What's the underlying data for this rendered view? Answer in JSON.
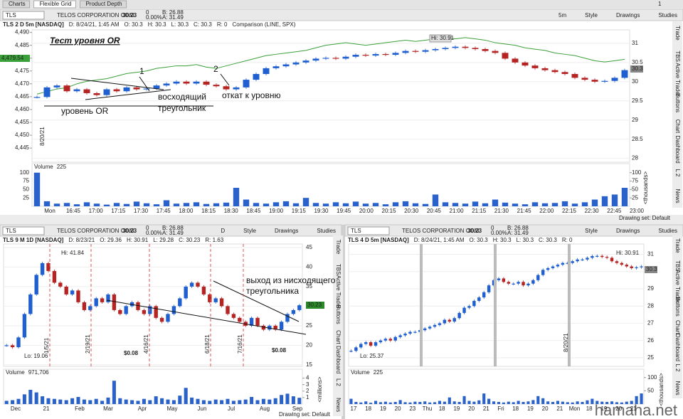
{
  "tabs": [
    "Charts",
    "Flexible Grid",
    "Product Depth"
  ],
  "tab_count": 1,
  "watermark": "hamaha.net",
  "panels": [
    {
      "header": {
        "symbol": "TLS",
        "company": "TELOS CORPORATION COM",
        "price": 30.23,
        "change": 0,
        "change_pct": "0.00%",
        "bid": "B: 26.88",
        "ask": "A: 31.49"
      },
      "buttons": [
        "5m",
        "Style",
        "Drawings",
        "Studies"
      ],
      "info": [
        "TLS 2 D 5m [NASDAQ]",
        "D: 8/24/21, 1:45 AM",
        "O: 30.3",
        "H: 30.3",
        "L: 30.3",
        "C: 30.3",
        "R: 0",
        "Comparison (LINE, SPX)"
      ],
      "price_axis": {
        "lim": [
          27.9,
          31.35
        ],
        "ticks": [
          31,
          30.5,
          30,
          29.5,
          29,
          28.5,
          28
        ]
      },
      "left_axis": {
        "lim": [
          4439.5,
          4491
        ],
        "ticks": [
          {
            "value": 4490,
            "label": "4,490"
          },
          {
            "value": 4485,
            "label": "4,485"
          },
          {
            "value": 4480,
            "label": "4,480"
          },
          {
            "value": 4475,
            "label": "4,475"
          },
          {
            "value": 4470,
            "label": "4,470"
          },
          {
            "value": 4465,
            "label": "4,465"
          },
          {
            "value": 4460,
            "label": "4,460"
          },
          {
            "value": 4455,
            "label": "4,455"
          },
          {
            "value": 4450,
            "label": "4,450"
          },
          {
            "value": 4445,
            "label": "4,445"
          }
        ]
      },
      "closes": [
        29.6,
        29.85,
        29.9,
        29.75,
        29.8,
        29.7,
        29.65,
        29.8,
        29.75,
        29.85,
        29.8,
        29.82,
        29.9,
        29.95,
        30.0,
        29.95,
        30.0,
        29.92,
        29.88,
        29.8,
        29.85,
        30.05,
        30.2,
        30.35,
        30.4,
        30.45,
        30.5,
        30.55,
        30.6,
        30.62,
        30.6,
        30.65,
        30.7,
        30.68,
        30.72,
        30.7,
        30.75,
        30.8,
        30.78,
        30.82,
        30.85,
        30.88,
        30.91,
        30.88,
        30.85,
        30.8,
        30.75,
        30.6,
        30.5,
        30.42,
        30.35,
        30.3,
        30.25,
        30.2,
        30.1,
        30.05,
        30.0,
        30.02,
        30.1,
        30.3
      ],
      "comparison": [
        4466,
        4467,
        4468,
        4468.5,
        4470,
        4471,
        4471.5,
        4472,
        4473,
        4474,
        4474.5,
        4475,
        4476,
        4476.5,
        4477,
        4477,
        4477.5,
        4476.5,
        4476,
        4477,
        4478,
        4479,
        4480,
        4481,
        4481.5,
        4482,
        4482.5,
        4483,
        4484,
        4485,
        4485.5,
        4486,
        4485.5,
        4485,
        4485.5,
        4486,
        4486.5,
        4487,
        4486.5,
        4487,
        4487.5,
        4488,
        4487.5,
        4488,
        4487.5,
        4487,
        4486,
        4485.5,
        4485,
        4484,
        4483.5,
        4483,
        4482,
        4481.5,
        4481,
        4480,
        4479,
        4478.5,
        4479,
        4479.54
      ],
      "volume": {
        "label": "Volume",
        "value": 225,
        "unit": "<thousands>",
        "lim": [
          0,
          110
        ],
        "ticks": [
          100,
          75,
          50,
          25
        ],
        "values": [
          100,
          15,
          8,
          10,
          6,
          12,
          8,
          5,
          10,
          7,
          14,
          9,
          6,
          18,
          8,
          10,
          12,
          7,
          9,
          11,
          55,
          20,
          10,
          8,
          12,
          15,
          9,
          25,
          10,
          8,
          12,
          9,
          14,
          8,
          10,
          6,
          12,
          15,
          9,
          7,
          35,
          12,
          10,
          8,
          14,
          9,
          20,
          11,
          8,
          6,
          12,
          9,
          10,
          15,
          8,
          12,
          20,
          30,
          35,
          55
        ]
      },
      "x_labels": [
        "Mon",
        "16:45",
        "17:00",
        "17:15",
        "17:30",
        "17:45",
        "18:00",
        "18:15",
        "18:30",
        "18:45",
        "19:00",
        "19:15",
        "19:30",
        "19:45",
        "20:00",
        "20:15",
        "20:30",
        "20:45",
        "21:00",
        "21:15",
        "21:30",
        "21:45",
        "22:00",
        "22:15",
        "22:30",
        "22:45",
        "23:00"
      ],
      "annotations": [
        "Тест уровня OR",
        "1",
        "2",
        "восходящий",
        "треугольник",
        "откат к уровню",
        "уровень OR",
        "Hi: 30.91",
        "4,479.54",
        "30.3",
        "8/20/21"
      ],
      "drawing_set": "Drawing set: Default",
      "side_tabs": [
        "Trade",
        "TBS",
        "Active Trader",
        "Buttons",
        "Chart",
        "Dashboard",
        "L 2",
        "News"
      ]
    },
    {
      "header": {
        "symbol": "TLS",
        "company": "TELOS CORPORATION COM",
        "price": 30.23,
        "change": 0,
        "change_pct": "0.00%",
        "bid": "B: 26.88",
        "ask": "A: 31.49"
      },
      "buttons": [
        "D",
        "Style",
        "Drawings",
        "Studies"
      ],
      "info": [
        "TLS 9 M 1D [NASDAQ]",
        "D: 8/23/21",
        "O: 29.36",
        "H: 30.91",
        "L: 29.28",
        "C: 30.23",
        "R: 1.63"
      ],
      "price_axis": {
        "lim": [
          14.6,
          45.9
        ],
        "ticks": [
          45,
          40,
          35,
          30,
          25,
          20,
          15
        ]
      },
      "closes": [
        20,
        19.5,
        22,
        28,
        33,
        38,
        41,
        39,
        36,
        35,
        33,
        34,
        31,
        29,
        30,
        32,
        31,
        33,
        29,
        28,
        30,
        31,
        29,
        28,
        30,
        27,
        26,
        28,
        30,
        32,
        35,
        36,
        35,
        33,
        31,
        32,
        30,
        28,
        27,
        26,
        25,
        27,
        25,
        24,
        25,
        24,
        26,
        28,
        29,
        30.23
      ],
      "volume": {
        "label": "Volume",
        "value": "971,706",
        "unit": "<millions>",
        "lim": [
          0,
          4.5
        ],
        "ticks": [
          4,
          3,
          2,
          1
        ],
        "values": [
          0.5,
          0.6,
          0.8,
          1.5,
          2.2,
          1.8,
          1.2,
          0.9,
          0.8,
          0.7,
          0.6,
          0.9,
          1.1,
          0.7,
          0.6,
          0.8,
          0.5,
          1.0,
          3.6,
          0.9,
          0.7,
          0.6,
          0.5,
          0.8,
          0.6,
          1.2,
          0.9,
          0.7,
          0.6,
          1.3,
          2.5,
          1.0,
          0.8,
          0.6,
          0.5,
          0.7,
          0.6,
          0.8,
          0.5,
          0.6,
          0.7,
          1.1,
          0.6,
          0.8,
          0.7,
          0.9,
          1.4,
          1.6,
          1.2,
          0.97
        ]
      },
      "x_labels": [
        "Dec",
        "21",
        "Feb",
        "Mar",
        "Apr",
        "May",
        "Jun",
        "Jul",
        "Aug",
        "Sep"
      ],
      "annotations": [
        "Hi: 41.84",
        "Lo: 19.06",
        "30.23",
        "выход из нисходящего",
        "треугольника",
        "$0.08",
        "$0.08"
      ],
      "dates": [
        "1/5/21",
        "2/19/21",
        "4/16/21",
        "6/18/21",
        "7/16/21"
      ],
      "drawing_set": "Drawing set: Default",
      "side_tabs": [
        "Trade",
        "TBS",
        "Active Trader",
        "Buttons",
        "Chart",
        "Dashboard",
        "L 2",
        "News"
      ]
    },
    {
      "header": {
        "symbol": "TLS",
        "company": "TELOS CORPORATION COM",
        "price": 30.23,
        "change": 0,
        "change_pct": "0.00%",
        "bid": "B: 26.88",
        "ask": "A: 31.49"
      },
      "buttons": [
        "Style",
        "Drawings",
        "Studies"
      ],
      "info": [
        "TLS 4 D 5m [NASDAQ]",
        "D: 8/24/21, 1:45 AM",
        "O: 30.3",
        "H: 30.3",
        "L: 30.3",
        "C: 30.3",
        "R: 0"
      ],
      "price_axis": {
        "lim": [
          24.5,
          31.6
        ],
        "ticks": [
          31,
          30,
          29,
          28,
          27,
          26,
          25
        ]
      },
      "closes": [
        25.4,
        25.6,
        25.8,
        25.9,
        25.7,
        25.9,
        26.0,
        26.1,
        26.0,
        26.2,
        26.3,
        26.4,
        26.5,
        26.5,
        26.6,
        26.7,
        26.8,
        26.9,
        27.0,
        27.2,
        27.1,
        27.3,
        27.6,
        27.9,
        28.0,
        28.3,
        28.5,
        28.8,
        29.2,
        29.5,
        29.6,
        29.4,
        29.3,
        29.3,
        29.4,
        29.2,
        29.3,
        29.5,
        29.8,
        30.1,
        30.2,
        30.3,
        30.4,
        30.5,
        30.5,
        30.6,
        30.7,
        30.7,
        30.8,
        30.9,
        30.91,
        30.85,
        30.8,
        30.6,
        30.5,
        30.4,
        30.3,
        30.2,
        30.25,
        30.3
      ],
      "volume": {
        "label": "Volume",
        "value": 225,
        "unit": "<thousands>",
        "lim": [
          0,
          110
        ],
        "ticks": [
          100,
          50
        ],
        "values": [
          20,
          8,
          6,
          10,
          5,
          12,
          7,
          9,
          6,
          8,
          15,
          7,
          6,
          9,
          8,
          10,
          6,
          7,
          12,
          9,
          25,
          10,
          8,
          30,
          12,
          9,
          14,
          40,
          20,
          10,
          8,
          6,
          9,
          7,
          12,
          8,
          10,
          15,
          30,
          22,
          10,
          8,
          12,
          9,
          7,
          6,
          10,
          8,
          14,
          20,
          12,
          9,
          8,
          10,
          7,
          6,
          9,
          12,
          30,
          40
        ]
      },
      "x_labels": [
        "17",
        "18",
        "19",
        "20",
        "23",
        "Thu",
        "18",
        "19",
        "20",
        "21",
        "Fri",
        "18",
        "19",
        "20",
        "21",
        "Mon",
        "18",
        "19",
        "20",
        "21"
      ],
      "annotations": [
        "Hi: 30.91",
        "Lo: 25.37",
        "30.3",
        "8/20/21"
      ],
      "side_tabs": [
        "Trade",
        "TBS",
        "Active Trader",
        "Buttons",
        "Chart",
        "Dashboard",
        "L 2",
        "News"
      ]
    }
  ]
}
